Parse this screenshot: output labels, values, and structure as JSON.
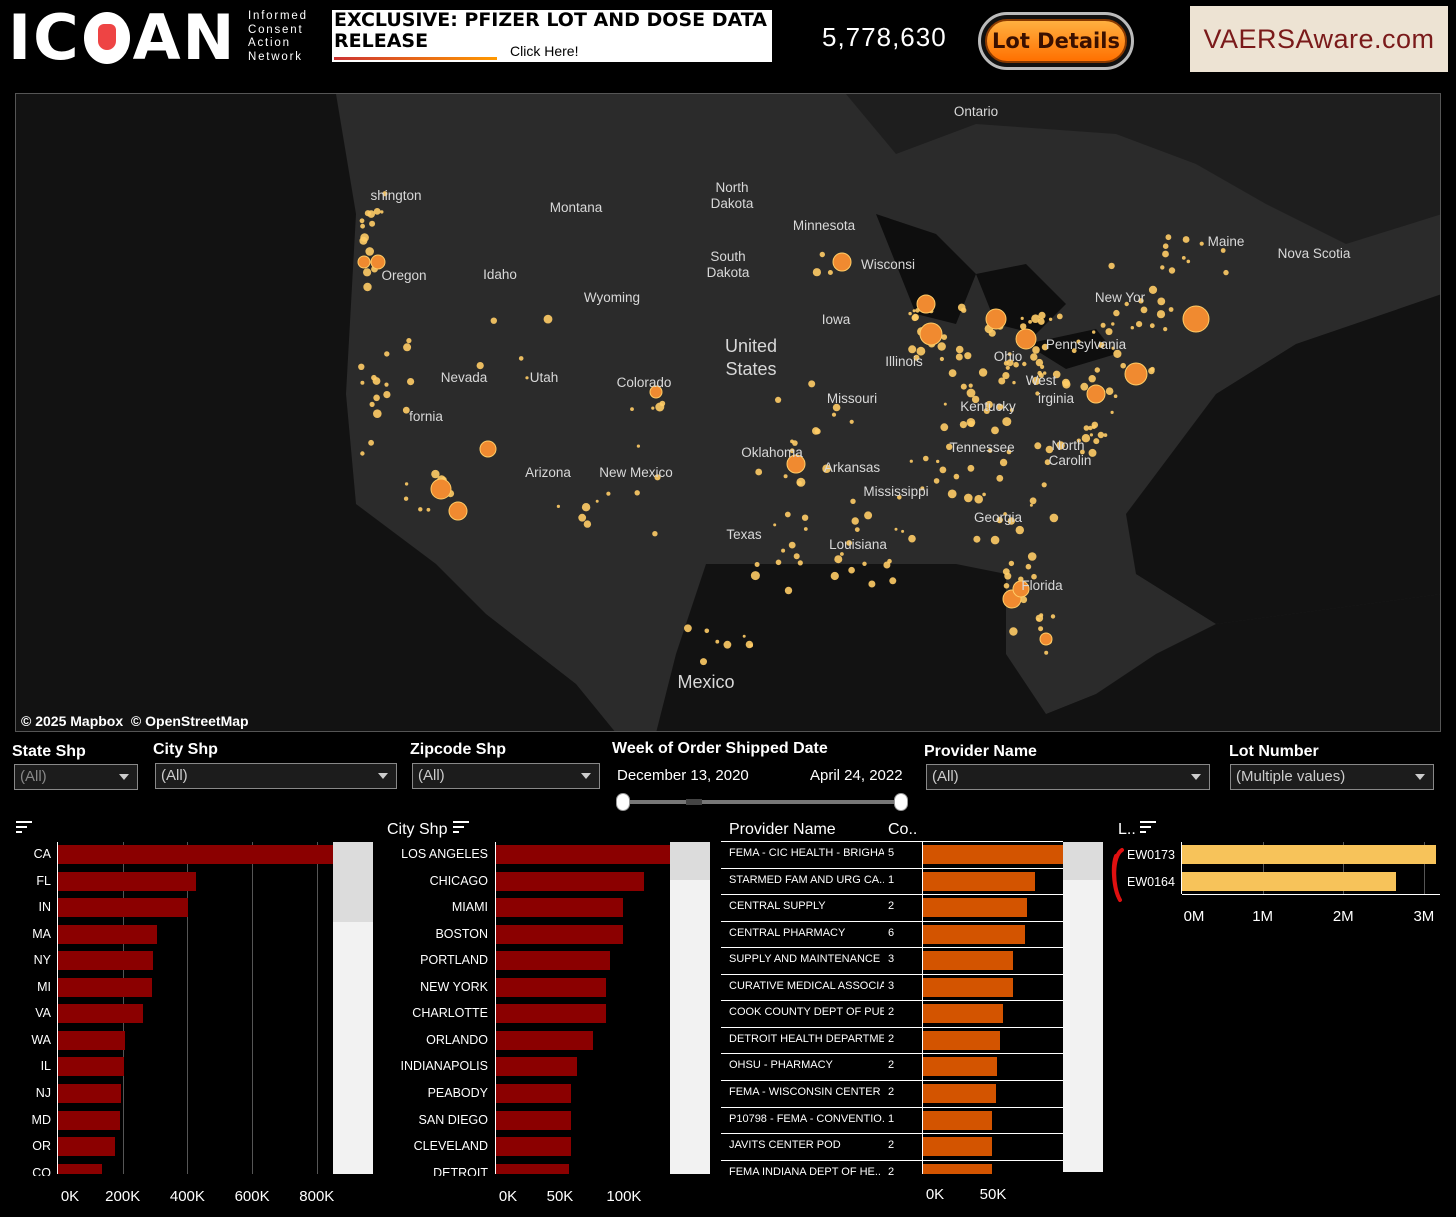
{
  "header": {
    "logo_word_left": "IC",
    "logo_word_right": "AN",
    "logo_sub": [
      "Informed",
      "Consent",
      "Action",
      "Network"
    ],
    "promo_title": "EXCLUSIVE: PFIZER LOT AND DOSE DATA RELEASE",
    "promo_cta": "Click Here!",
    "total_doses": "5,778,630",
    "lot_button": "Lot Details",
    "site_badge": "VAERSAware.com"
  },
  "map": {
    "credit_mapbox": "© 2025 Mapbox",
    "credit_osm": "© OpenStreetMap",
    "labels": [
      "Ontario",
      "shington",
      "Montana",
      "North",
      "Dakota",
      "Minnesota",
      "South",
      "Dakota",
      "Wisconsi",
      "Maine",
      "Nova Scotia",
      "Oregon",
      "Idaho",
      "Wyoming",
      "New Yor",
      "Iowa",
      "United",
      "States",
      "Illinois",
      "Pennsylvania",
      "Ohio",
      "Nevada",
      "Utah",
      "Colorado",
      "West",
      "irginia",
      "Kentucky",
      "Missouri",
      "fornia",
      "Tennessee",
      "North",
      "Carolin",
      "Oklahoma",
      "Arkansas",
      "Arizona",
      "New Mexico",
      "Mississippi",
      "Georgia",
      "Texas",
      "Louisiana",
      "Mexico",
      "Florida"
    ]
  },
  "filters": {
    "state": {
      "label": "State Shp",
      "value": "(All)"
    },
    "city": {
      "label": "City Shp",
      "value": "(All)"
    },
    "zip": {
      "label": "Zipcode Shp",
      "value": "(All)"
    },
    "week": {
      "label": "Week of Order Shipped Date",
      "start": "December 13, 2020",
      "end": "April 24, 2022"
    },
    "provider": {
      "label": "Provider Name",
      "value": "(All)"
    },
    "lot": {
      "label": "Lot Number",
      "value": "(Multiple values)"
    }
  },
  "colors": {
    "state_bar": "#8b0000",
    "city_bar": "#8b0000",
    "provider_bar": "#d35400",
    "lot_bar": "#f7c35a",
    "dot_small": "#ffcc66",
    "dot_large": "#f08a30"
  },
  "chart_data": [
    {
      "type": "bar",
      "title": "",
      "categories": [
        "CA",
        "FL",
        "IN",
        "MA",
        "NY",
        "MI",
        "VA",
        "WA",
        "IL",
        "NJ",
        "MD",
        "OR",
        "CO"
      ],
      "values": [
        850000,
        425000,
        402000,
        305000,
        295000,
        290000,
        262000,
        208000,
        205000,
        195000,
        192000,
        175000,
        135000
      ],
      "xlim": [
        0,
        850000
      ],
      "xticks": [
        "0K",
        "200K",
        "400K",
        "600K",
        "800K"
      ]
    },
    {
      "type": "bar",
      "title": "City Shp",
      "categories": [
        "LOS ANGELES",
        "CHICAGO",
        "MIAMI",
        "BOSTON",
        "PORTLAND",
        "NEW YORK",
        "CHARLOTTE",
        "ORLANDO",
        "INDIANAPOLIS",
        "PEABODY",
        "SAN DIEGO",
        "CLEVELAND",
        "DETROIT"
      ],
      "values": [
        136000,
        116000,
        99000,
        99000,
        89000,
        86000,
        86000,
        76000,
        63000,
        59000,
        59000,
        59000,
        57000
      ],
      "xlim": [
        0,
        136000
      ],
      "xticks": [
        "0K",
        "50K",
        "100K"
      ]
    },
    {
      "type": "bar",
      "title": "",
      "columns": [
        "Provider Name",
        "Co.."
      ],
      "categories": [
        "FEMA - CIC HEALTH - BRIGHA..",
        "STARMED FAM AND URG CA..",
        "CENTRAL SUPPLY",
        "CENTRAL PHARMACY",
        "SUPPLY AND MAINTENANCE",
        "CURATIVE MEDICAL ASSOCIA..",
        "COOK COUNTY DEPT OF PUBL..",
        "DETROIT HEALTH DEPARTME..",
        "OHSU - PHARMACY",
        "FEMA - WISCONSIN CENTER",
        "P10798 - FEMA - CONVENTIO..",
        "JAVITS CENTER POD",
        "FEMA INDIANA DEPT OF HE.."
      ],
      "counts": [
        "5",
        "1",
        "2",
        "6",
        "3",
        "3",
        "2",
        "2",
        "2",
        "2",
        "1",
        "2",
        "2"
      ],
      "values": [
        100000,
        80000,
        74000,
        73000,
        64000,
        64000,
        57000,
        55000,
        53000,
        52000,
        49000,
        49000,
        49000
      ],
      "xlim": [
        0,
        100000
      ],
      "xticks": [
        "0K",
        "50K"
      ]
    },
    {
      "type": "bar",
      "title": "L..",
      "categories": [
        "EW0173",
        "EW0164"
      ],
      "values": [
        3150000,
        2650000
      ],
      "xlim": [
        0,
        3200000
      ],
      "xticks": [
        "0M",
        "1M",
        "2M",
        "3M"
      ]
    }
  ]
}
